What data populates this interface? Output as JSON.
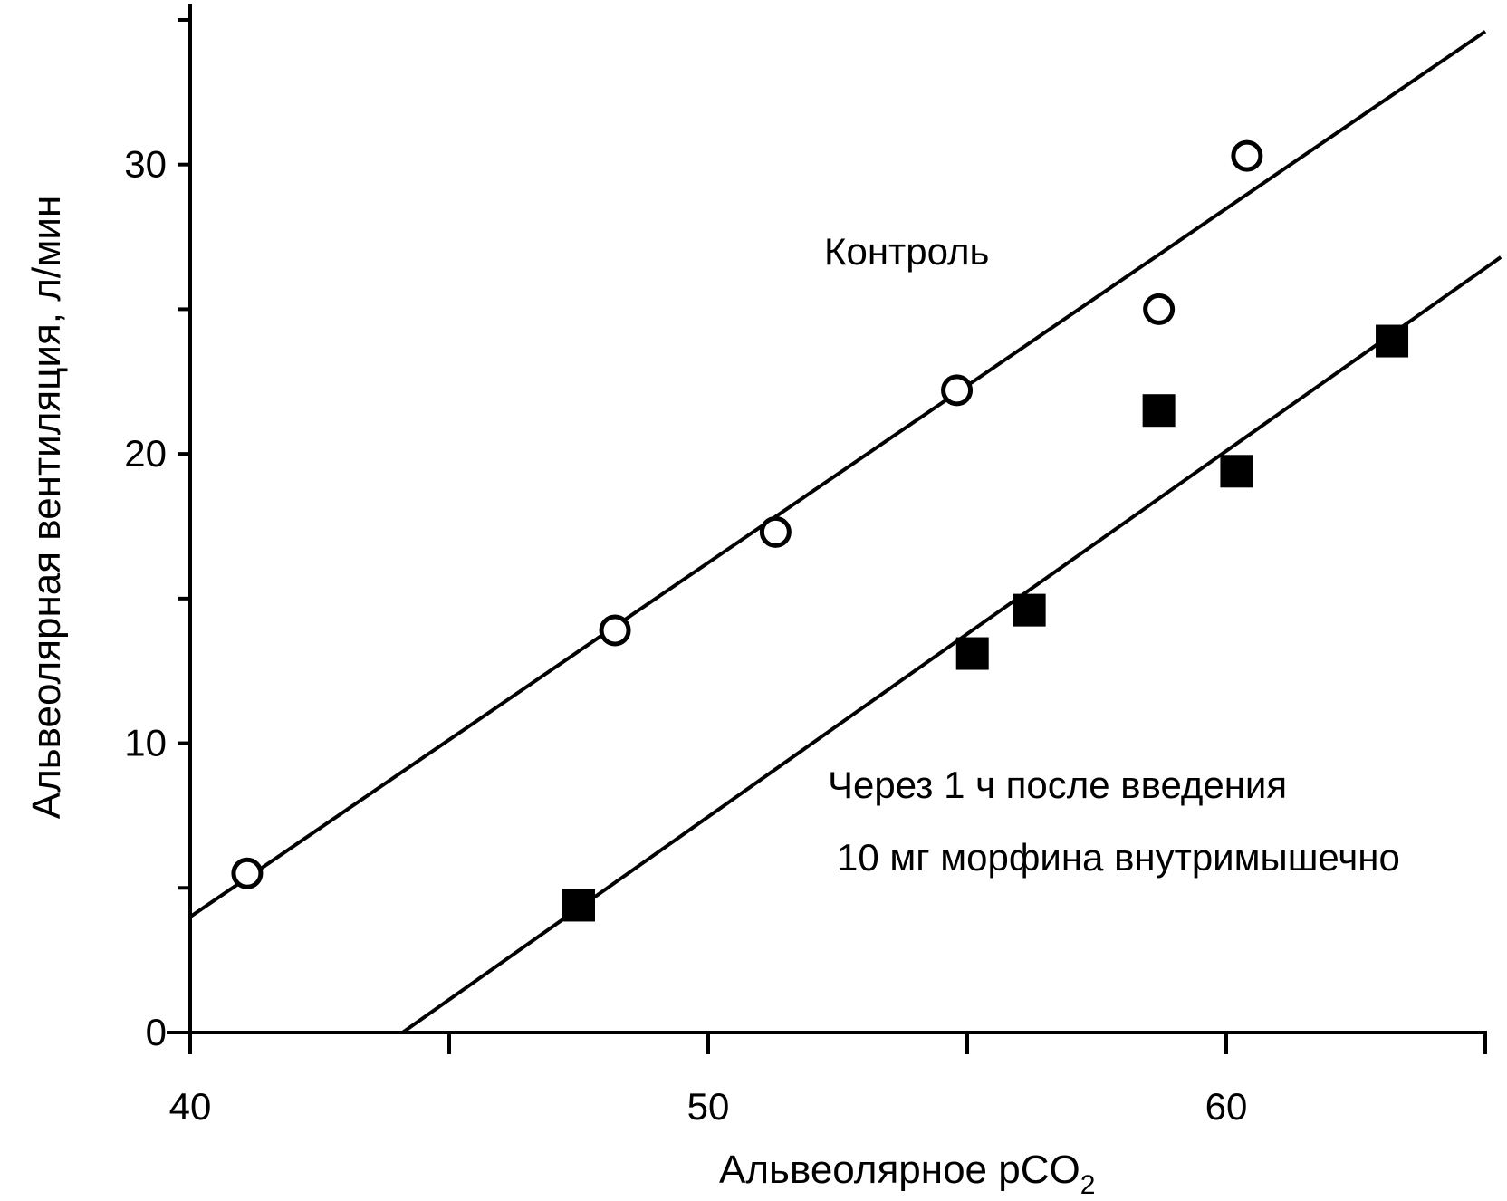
{
  "chart_data": {
    "type": "scatter",
    "xlabel": "Альвеолярное pCO",
    "xlabel_sub": "2",
    "ylabel": "Альвеолярная вентиляция, л/мин",
    "xlim": [
      40,
      65
    ],
    "ylim": [
      0,
      35.5
    ],
    "x_ticks": [
      40,
      45,
      50,
      55,
      60,
      65
    ],
    "x_tick_labels": [
      "40",
      "",
      "50",
      "",
      "60",
      ""
    ],
    "y_ticks": [
      0,
      5,
      10,
      15,
      20,
      25,
      30,
      35
    ],
    "y_tick_labels": [
      "0",
      "",
      "10",
      "",
      "20",
      "",
      "30",
      ""
    ],
    "grid": false,
    "series": [
      {
        "name": "Контроль",
        "marker": "open-circle",
        "points": [
          {
            "x": 41.1,
            "y": 5.5
          },
          {
            "x": 48.2,
            "y": 13.9
          },
          {
            "x": 51.3,
            "y": 17.3
          },
          {
            "x": 54.8,
            "y": 22.2
          },
          {
            "x": 58.7,
            "y": 25.0
          },
          {
            "x": 60.4,
            "y": 30.3
          }
        ],
        "fit_line": [
          [
            40,
            4.0
          ],
          [
            65,
            34.6
          ]
        ]
      },
      {
        "name": "Через 1 ч после введения 10 мг морфина внутримышечно",
        "marker": "filled-square",
        "points": [
          {
            "x": 47.5,
            "y": 4.4
          },
          {
            "x": 55.1,
            "y": 13.1
          },
          {
            "x": 56.2,
            "y": 14.6
          },
          {
            "x": 58.7,
            "y": 21.5
          },
          {
            "x": 60.2,
            "y": 19.4
          },
          {
            "x": 63.2,
            "y": 23.9
          }
        ],
        "fit_line": [
          [
            44.1,
            0
          ],
          [
            65.3,
            26.8
          ]
        ]
      }
    ],
    "annotations": {
      "control": "Контроль",
      "morphine_line1": "Через 1 ч после введения",
      "morphine_line2": "10 мг морфина внутримышечно"
    }
  }
}
